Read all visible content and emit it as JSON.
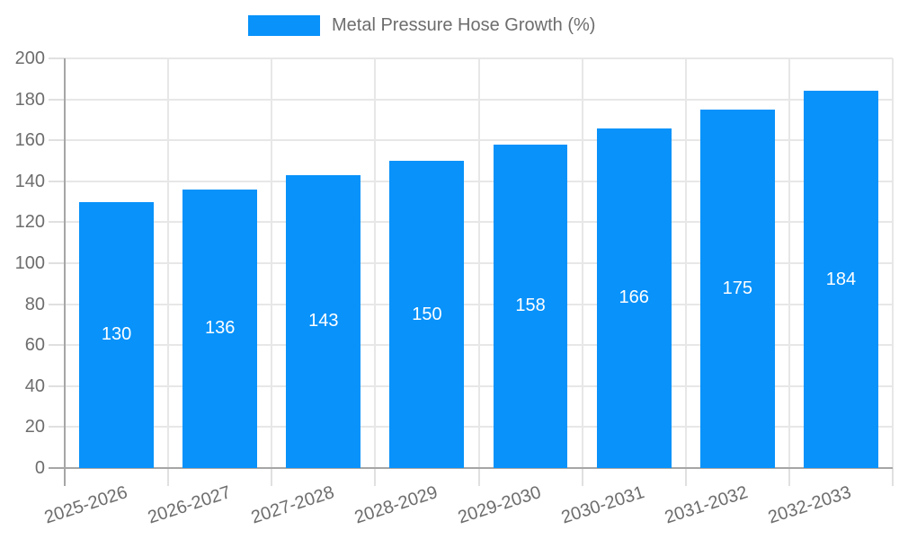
{
  "legend": {
    "label": "Metal Pressure Hose Growth (%)"
  },
  "chart_data": {
    "type": "bar",
    "title": "",
    "series_name": "Metal Pressure Hose Growth (%)",
    "categories": [
      "2025-2026",
      "2026-2027",
      "2027-2028",
      "2028-2029",
      "2029-2030",
      "2030-2031",
      "2031-2032",
      "2032-2033"
    ],
    "values": [
      130,
      136,
      143,
      150,
      158,
      166,
      175,
      184
    ],
    "value_labels": [
      "130",
      "136",
      "143",
      "150",
      "158",
      "166",
      "175",
      "184"
    ],
    "xlabel": "",
    "ylabel": "",
    "ylim": [
      0,
      200
    ],
    "ytick_step": 20,
    "ytick_labels": [
      "0",
      "20",
      "40",
      "60",
      "80",
      "100",
      "120",
      "140",
      "160",
      "180",
      "200"
    ],
    "grid": true,
    "legend_position": "top"
  },
  "colors": {
    "bar": "#0892fa",
    "value_label": "#ffffff",
    "axis": "#a6a6a6",
    "gridline": "#e7e7e7",
    "tick": "#e0e0e0",
    "tick_text": "#6d6d6d",
    "background": "#ffffff"
  }
}
